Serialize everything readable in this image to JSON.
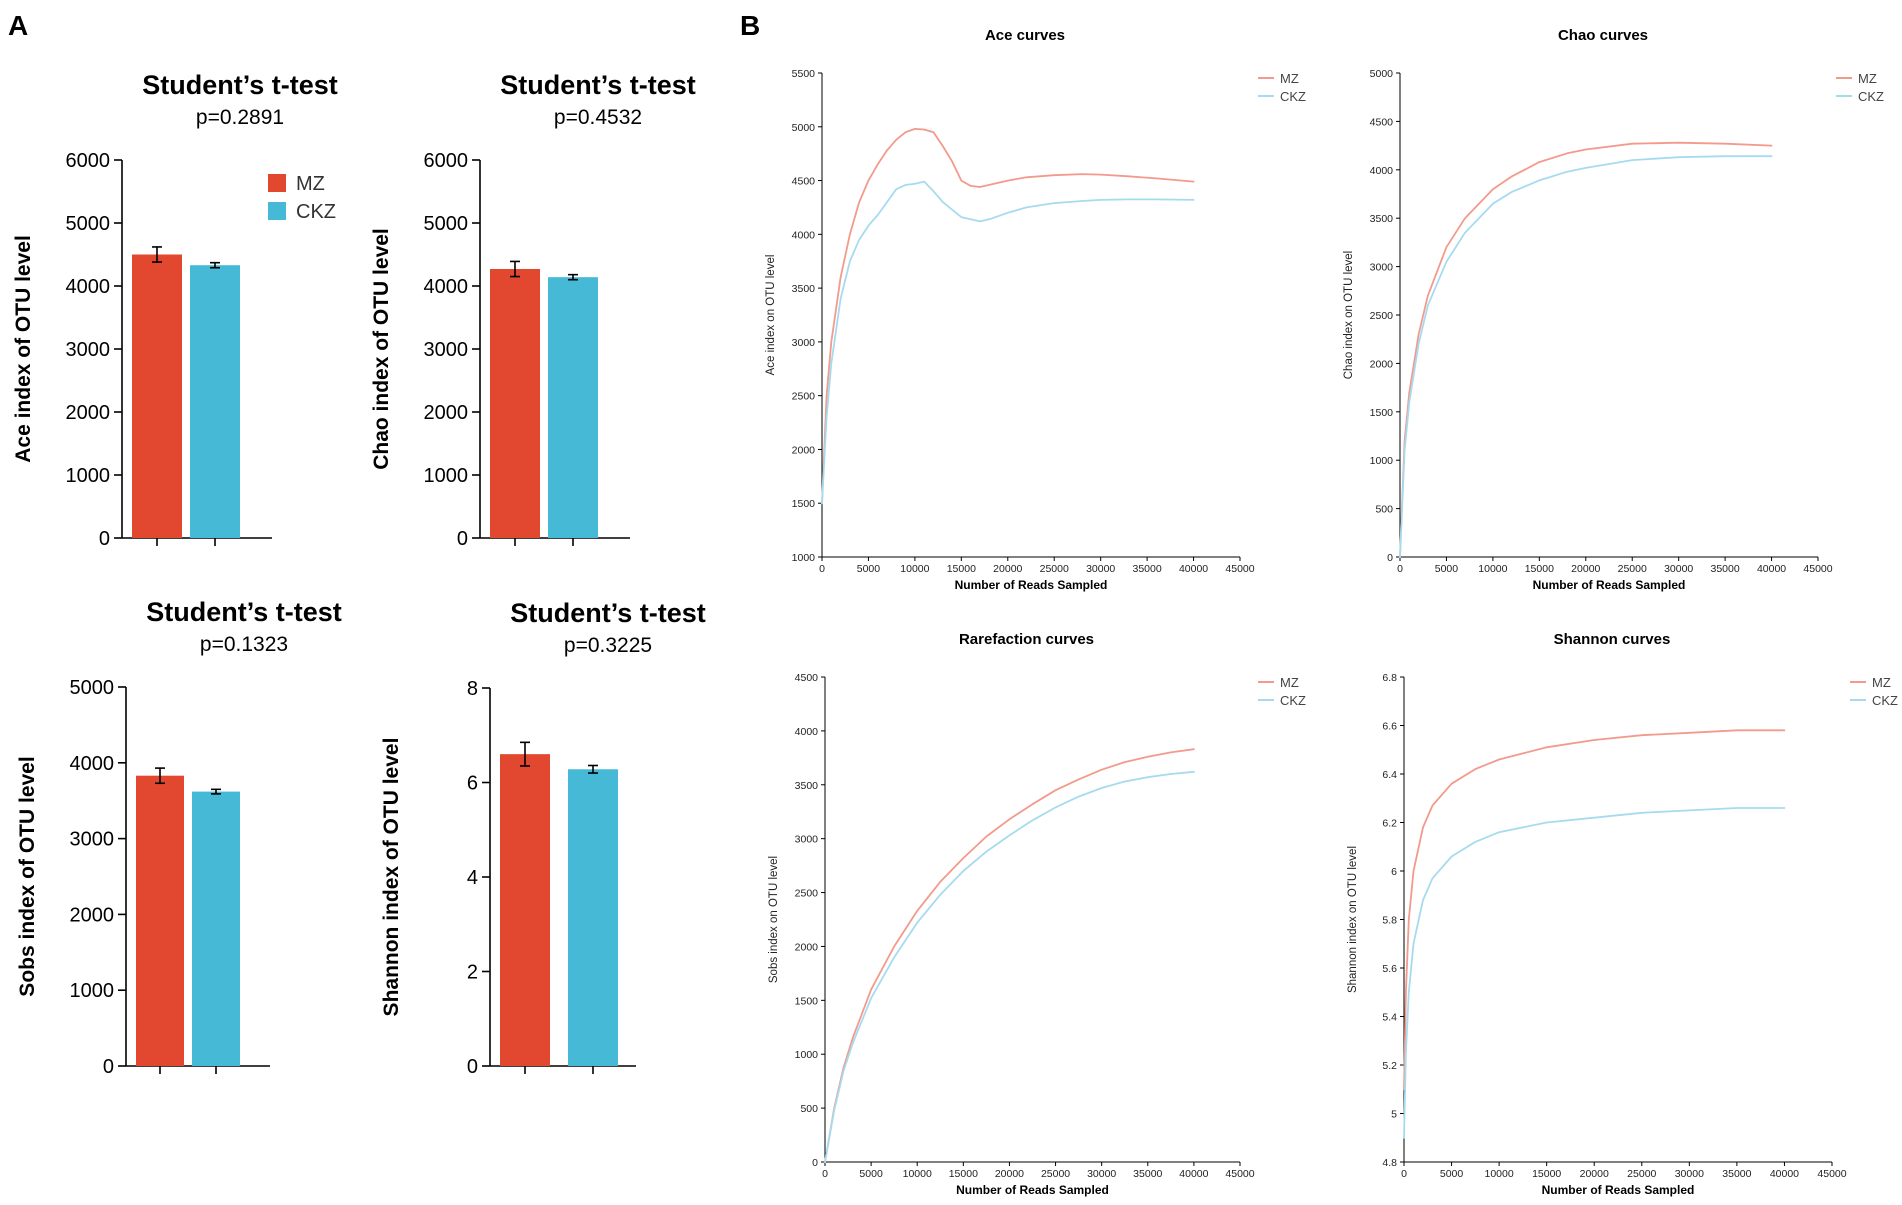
{
  "panel_labels": [
    "A",
    "B"
  ],
  "colors": {
    "mz": "#e2482f",
    "ckz": "#45b9d6",
    "mz_line": "#f29a8c",
    "ckz_line": "#a6dbef"
  },
  "chart_data": [
    {
      "type": "bar",
      "title": "Student’s t-test",
      "subtitle": "p=0.2891",
      "ylabel": "Ace index of OTU level",
      "xlabel": "",
      "categories": [
        "MZ",
        "CKZ"
      ],
      "values": [
        4500,
        4330
      ],
      "errors": [
        120,
        40
      ],
      "ylim": [
        0,
        6000
      ],
      "yticks": [
        "0",
        "1000",
        "2000",
        "3000",
        "4000",
        "5000",
        "6000"
      ],
      "legend": [
        "MZ",
        "CKZ"
      ],
      "legend_position": "top-right"
    },
    {
      "type": "bar",
      "title": "Student’s t-test",
      "subtitle": "p=0.4532",
      "ylabel": "Chao index of OTU level",
      "xlabel": "",
      "categories": [
        "MZ",
        "CKZ"
      ],
      "values": [
        4270,
        4140
      ],
      "errors": [
        120,
        40
      ],
      "ylim": [
        0,
        6000
      ],
      "yticks": [
        "0",
        "1000",
        "2000",
        "3000",
        "4000",
        "5000",
        "6000"
      ]
    },
    {
      "type": "bar",
      "title": "Student’s t-test",
      "subtitle": "p=0.1323",
      "ylabel": "Sobs index of OTU level",
      "xlabel": "",
      "categories": [
        "MZ",
        "CKZ"
      ],
      "values": [
        3830,
        3620
      ],
      "errors": [
        100,
        30
      ],
      "ylim": [
        0,
        5000
      ],
      "yticks": [
        "0",
        "1000",
        "2000",
        "3000",
        "4000",
        "5000"
      ]
    },
    {
      "type": "bar",
      "title": "Student’s t-test",
      "subtitle": "p=0.3225",
      "ylabel": "Shannon index of OTU level",
      "xlabel": "",
      "categories": [
        "MZ",
        "CKZ"
      ],
      "values": [
        6.6,
        6.28
      ],
      "errors": [
        0.25,
        0.08
      ],
      "ylim": [
        0,
        8
      ],
      "yticks": [
        "0",
        "2",
        "4",
        "6",
        "8"
      ]
    },
    {
      "type": "line",
      "title": "Ace curves",
      "xlabel": "Number of Reads Sampled",
      "ylabel": "Ace index on OTU level",
      "xlim": [
        0,
        45000
      ],
      "ylim": [
        1000,
        5500
      ],
      "xticks": [
        "0",
        "5000",
        "10000",
        "15000",
        "20000",
        "25000",
        "30000",
        "35000",
        "40000",
        "45000"
      ],
      "yticks": [
        "1000",
        "1500",
        "2000",
        "2500",
        "3000",
        "3500",
        "4000",
        "4500",
        "5000",
        "5500"
      ],
      "legend_position": "top-right",
      "series": [
        {
          "name": "MZ",
          "x": [
            0,
            500,
            1000,
            2000,
            3000,
            4000,
            5000,
            6000,
            7000,
            8000,
            9000,
            10000,
            11000,
            12000,
            13000,
            14000,
            15000,
            16000,
            17000,
            18000,
            20000,
            22000,
            25000,
            28000,
            30000,
            33000,
            36000,
            40000
          ],
          "y": [
            1500,
            2500,
            3000,
            3600,
            4000,
            4300,
            4500,
            4650,
            4780,
            4880,
            4950,
            4980,
            4975,
            4950,
            4820,
            4680,
            4500,
            4450,
            4440,
            4460,
            4500,
            4530,
            4550,
            4560,
            4555,
            4540,
            4520,
            4490
          ]
        },
        {
          "name": "CKZ",
          "x": [
            0,
            500,
            1000,
            2000,
            3000,
            4000,
            5000,
            6000,
            7000,
            8000,
            9000,
            10000,
            11000,
            12000,
            13000,
            14000,
            15000,
            16000,
            17000,
            18000,
            20000,
            22000,
            25000,
            28000,
            30000,
            33000,
            36000,
            40000
          ],
          "y": [
            1500,
            2300,
            2800,
            3400,
            3750,
            3950,
            4080,
            4180,
            4300,
            4420,
            4460,
            4470,
            4490,
            4400,
            4300,
            4230,
            4160,
            4140,
            4120,
            4140,
            4200,
            4250,
            4290,
            4310,
            4320,
            4325,
            4325,
            4320
          ]
        }
      ]
    },
    {
      "type": "line",
      "title": "Chao curves",
      "xlabel": "Number of Reads Sampled",
      "ylabel": "Chao index on OTU level",
      "xlim": [
        0,
        45000
      ],
      "ylim": [
        0,
        5000
      ],
      "xticks": [
        "0",
        "5000",
        "10000",
        "15000",
        "20000",
        "25000",
        "30000",
        "35000",
        "40000",
        "45000"
      ],
      "yticks": [
        "0",
        "500",
        "1000",
        "1500",
        "2000",
        "2500",
        "3000",
        "3500",
        "4000",
        "4500",
        "5000"
      ],
      "legend_position": "top-right",
      "series": [
        {
          "name": "MZ",
          "x": [
            0,
            200,
            500,
            1000,
            2000,
            3000,
            5000,
            7000,
            10000,
            12000,
            15000,
            18000,
            20000,
            25000,
            30000,
            35000,
            40000
          ],
          "y": [
            0,
            500,
            1200,
            1700,
            2300,
            2700,
            3200,
            3500,
            3800,
            3930,
            4080,
            4170,
            4210,
            4270,
            4280,
            4270,
            4250
          ]
        },
        {
          "name": "CKZ",
          "x": [
            0,
            200,
            500,
            1000,
            2000,
            3000,
            5000,
            7000,
            10000,
            12000,
            15000,
            18000,
            20000,
            25000,
            30000,
            35000,
            40000
          ],
          "y": [
            0,
            450,
            1100,
            1600,
            2200,
            2600,
            3050,
            3350,
            3650,
            3770,
            3890,
            3980,
            4020,
            4100,
            4130,
            4140,
            4140
          ]
        }
      ]
    },
    {
      "type": "line",
      "title": "Rarefaction curves",
      "xlabel": "Number of Reads Sampled",
      "ylabel": "Sobs index on OTU level",
      "xlim": [
        0,
        45000
      ],
      "ylim": [
        0,
        4500
      ],
      "xticks": [
        "0",
        "5000",
        "10000",
        "15000",
        "20000",
        "25000",
        "30000",
        "35000",
        "40000",
        "45000"
      ],
      "yticks": [
        "0",
        "500",
        "1000",
        "1500",
        "2000",
        "2500",
        "3000",
        "3500",
        "4000",
        "4500"
      ],
      "legend_position": "top-right",
      "series": [
        {
          "name": "MZ",
          "x": [
            0,
            1000,
            2000,
            3000,
            5000,
            7500,
            10000,
            12500,
            15000,
            17500,
            20000,
            22500,
            25000,
            27500,
            30000,
            32500,
            35000,
            37500,
            40000
          ],
          "y": [
            0,
            500,
            870,
            1150,
            1600,
            2000,
            2330,
            2600,
            2820,
            3020,
            3180,
            3320,
            3450,
            3550,
            3640,
            3710,
            3760,
            3800,
            3830
          ]
        },
        {
          "name": "CKZ",
          "x": [
            0,
            1000,
            2000,
            3000,
            5000,
            7500,
            10000,
            12500,
            15000,
            17500,
            20000,
            22500,
            25000,
            27500,
            30000,
            32500,
            35000,
            37500,
            40000
          ],
          "y": [
            0,
            480,
            840,
            1100,
            1520,
            1900,
            2220,
            2480,
            2700,
            2880,
            3030,
            3170,
            3290,
            3390,
            3470,
            3530,
            3570,
            3600,
            3620
          ]
        }
      ]
    },
    {
      "type": "line",
      "title": "Shannon curves",
      "xlabel": "Number of Reads Sampled",
      "ylabel": "Shannon index on OTU level",
      "xlim": [
        0,
        45000
      ],
      "ylim": [
        4.8,
        6.8
      ],
      "xticks": [
        "0",
        "5000",
        "10000",
        "15000",
        "20000",
        "25000",
        "30000",
        "35000",
        "40000",
        "45000"
      ],
      "yticks": [
        "4.8",
        "5",
        "5.2",
        "5.4",
        "5.6",
        "5.8",
        "6",
        "6.2",
        "6.4",
        "6.6",
        "6.8"
      ],
      "legend_position": "top-right",
      "series": [
        {
          "name": "MZ",
          "x": [
            0,
            200,
            500,
            1000,
            2000,
            3000,
            5000,
            7500,
            10000,
            15000,
            20000,
            25000,
            30000,
            35000,
            40000
          ],
          "y": [
            5.1,
            5.5,
            5.8,
            6.0,
            6.18,
            6.27,
            6.36,
            6.42,
            6.46,
            6.51,
            6.54,
            6.56,
            6.57,
            6.58,
            6.58
          ]
        },
        {
          "name": "CKZ",
          "x": [
            0,
            200,
            500,
            1000,
            2000,
            3000,
            5000,
            7500,
            10000,
            15000,
            20000,
            25000,
            30000,
            35000,
            40000
          ],
          "y": [
            4.9,
            5.25,
            5.5,
            5.7,
            5.88,
            5.97,
            6.06,
            6.12,
            6.16,
            6.2,
            6.22,
            6.24,
            6.25,
            6.26,
            6.26
          ]
        }
      ]
    }
  ]
}
